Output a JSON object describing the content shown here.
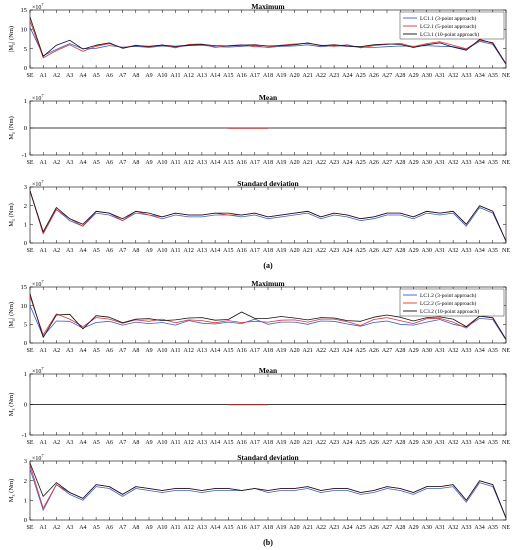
{
  "colors": {
    "lc1": "#3b5bdb",
    "lc2": "#e03131",
    "lc3": "#111111",
    "zero": "#c92a2a"
  },
  "category_labels": [
    "SE",
    "A1",
    "A2",
    "A3",
    "A4",
    "A5",
    "A6",
    "A7",
    "A8",
    "A9",
    "A10",
    "A11",
    "A12",
    "A13",
    "A14",
    "A15",
    "A16",
    "A17",
    "A18",
    "A19",
    "A20",
    "A21",
    "A22",
    "A23",
    "A24",
    "A25",
    "A26",
    "A27",
    "A28",
    "A29",
    "A30",
    "A31",
    "A32",
    "A33",
    "A34",
    "A35",
    "NE"
  ],
  "captions": [
    "(a)",
    "(b)"
  ],
  "chart_data": [
    {
      "type": "line",
      "panel": "a-max",
      "title": "Maximum",
      "ylabel": "|M_z| (Nm)",
      "exponent": "×10^7",
      "ylim": [
        0,
        15
      ],
      "yticks": [
        0,
        5,
        10,
        15
      ],
      "legend": "top-right",
      "series": [
        {
          "name": "LC1.1 (3-point approach)",
          "values": [
            10.5,
            3.2,
            4.8,
            6.3,
            5.0,
            5.1,
            5.8,
            5.4,
            5.6,
            5.3,
            5.7,
            5.4,
            5.8,
            5.9,
            5.5,
            5.4,
            5.6,
            5.8,
            5.3,
            5.6,
            5.7,
            6.0,
            5.5,
            5.8,
            5.6,
            5.4,
            5.3,
            5.5,
            5.7,
            5.6,
            5.8,
            5.6,
            5.5,
            4.8,
            6.9,
            6.1,
            0.9
          ]
        },
        {
          "name": "LC2.1 (5-point approach)",
          "values": [
            12.2,
            2.6,
            4.5,
            6.0,
            4.3,
            5.6,
            6.3,
            5.2,
            5.9,
            5.4,
            6.0,
            5.2,
            6.1,
            6.2,
            5.3,
            5.8,
            6.0,
            5.5,
            5.4,
            5.9,
            6.2,
            6.4,
            5.9,
            5.6,
            6.0,
            5.2,
            5.8,
            6.1,
            6.4,
            5.5,
            6.3,
            6.8,
            5.9,
            5.0,
            7.1,
            6.6,
            1.0
          ]
        },
        {
          "name": "LC3.1 (10-point approach)",
          "values": [
            13.2,
            3.0,
            5.9,
            7.2,
            4.9,
            5.9,
            6.5,
            5.1,
            5.8,
            5.6,
            5.9,
            5.6,
            5.9,
            6.1,
            5.8,
            5.7,
            5.9,
            6.0,
            5.7,
            5.8,
            6.0,
            6.5,
            5.8,
            6.0,
            5.7,
            5.5,
            6.0,
            6.2,
            6.1,
            5.3,
            6.0,
            6.5,
            5.4,
            4.6,
            7.4,
            6.4,
            1.1
          ]
        }
      ]
    },
    {
      "type": "line",
      "panel": "a-mean",
      "title": "Mean",
      "ylabel": "M_z (Nm)",
      "exponent": "×10^7",
      "ylim": [
        -1,
        1
      ],
      "yticks": [
        -1,
        0,
        1
      ],
      "series_values": "all zero"
    },
    {
      "type": "line",
      "panel": "a-std",
      "title": "Standard deviation",
      "ylabel": "M_z (Nm)",
      "exponent": "×10^7",
      "ylim": [
        0,
        3
      ],
      "yticks": [
        0,
        1,
        2,
        3
      ],
      "series": [
        {
          "name": "LC1.1 (3-point approach)",
          "values": [
            2.8,
            0.5,
            1.8,
            1.2,
            0.9,
            1.6,
            1.5,
            1.2,
            1.6,
            1.5,
            1.3,
            1.5,
            1.4,
            1.4,
            1.5,
            1.5,
            1.4,
            1.5,
            1.3,
            1.4,
            1.5,
            1.6,
            1.3,
            1.5,
            1.4,
            1.2,
            1.3,
            1.5,
            1.5,
            1.3,
            1.6,
            1.5,
            1.6,
            0.9,
            1.9,
            1.6,
            0.1
          ]
        },
        {
          "name": "LC2.1 (5-point approach)",
          "values": [
            2.8,
            0.5,
            1.8,
            1.3,
            0.9,
            1.7,
            1.6,
            1.2,
            1.7,
            1.5,
            1.4,
            1.6,
            1.5,
            1.5,
            1.6,
            1.5,
            1.5,
            1.6,
            1.4,
            1.5,
            1.6,
            1.7,
            1.4,
            1.6,
            1.5,
            1.3,
            1.4,
            1.6,
            1.6,
            1.4,
            1.7,
            1.6,
            1.7,
            1.0,
            2.0,
            1.7,
            0.1
          ]
        },
        {
          "name": "LC3.1 (10-point approach)",
          "values": [
            2.8,
            0.6,
            1.9,
            1.3,
            1.0,
            1.7,
            1.6,
            1.3,
            1.7,
            1.6,
            1.4,
            1.6,
            1.5,
            1.5,
            1.6,
            1.6,
            1.5,
            1.6,
            1.4,
            1.5,
            1.6,
            1.7,
            1.4,
            1.6,
            1.5,
            1.3,
            1.4,
            1.6,
            1.6,
            1.4,
            1.7,
            1.6,
            1.7,
            1.0,
            2.0,
            1.7,
            0.1
          ]
        }
      ]
    },
    {
      "type": "line",
      "panel": "b-max",
      "title": "Maximum",
      "ylabel": "|M_z| (Nm)",
      "exponent": "×10^7",
      "ylim": [
        0,
        15
      ],
      "yticks": [
        0,
        5,
        10,
        15
      ],
      "legend": "top-right",
      "series": [
        {
          "name": "LC1.2 (3-point approach)",
          "values": [
            10.0,
            1.8,
            5.9,
            5.8,
            4.0,
            5.5,
            5.8,
            4.8,
            5.6,
            5.2,
            5.5,
            4.8,
            6.0,
            5.3,
            5.1,
            5.6,
            5.2,
            6.4,
            5.0,
            5.6,
            5.6,
            5.0,
            5.9,
            5.8,
            5.1,
            4.5,
            5.5,
            5.9,
            5.0,
            4.8,
            5.6,
            6.3,
            5.0,
            4.3,
            6.6,
            6.3,
            0.8
          ]
        },
        {
          "name": "LC2.2 (5-point approach)",
          "values": [
            12.5,
            2.2,
            7.8,
            6.4,
            4.4,
            6.8,
            6.4,
            5.3,
            6.2,
            5.8,
            6.4,
            5.4,
            6.2,
            6.0,
            5.4,
            6.0,
            5.5,
            5.8,
            5.6,
            6.1,
            6.2,
            5.6,
            6.4,
            6.4,
            5.7,
            4.7,
            6.3,
            6.8,
            6.0,
            5.2,
            6.5,
            6.6,
            5.6,
            4.0,
            7.2,
            6.7,
            0.9
          ]
        },
        {
          "name": "LC3.2 (10-point approach)",
          "values": [
            13.2,
            1.5,
            7.5,
            7.7,
            3.8,
            7.3,
            6.9,
            5.4,
            6.4,
            6.5,
            6.0,
            6.2,
            6.7,
            6.8,
            6.1,
            6.3,
            8.3,
            6.6,
            6.6,
            7.1,
            6.7,
            6.2,
            6.8,
            6.7,
            6.0,
            5.8,
            6.9,
            7.5,
            6.9,
            5.9,
            6.8,
            7.0,
            6.4,
            4.4,
            7.2,
            6.8,
            1.0
          ]
        }
      ]
    },
    {
      "type": "line",
      "panel": "b-mean",
      "title": "Mean",
      "ylabel": "M_z (Nm)",
      "exponent": "×10^7",
      "ylim": [
        -1,
        1
      ],
      "yticks": [
        -1,
        0,
        1
      ],
      "series_values": "all zero"
    },
    {
      "type": "line",
      "panel": "b-std",
      "title": "Standard deviation",
      "ylabel": "M_z (Nm)",
      "exponent": "×10^7",
      "ylim": [
        0,
        3
      ],
      "yticks": [
        0,
        1,
        2,
        3
      ],
      "series": [
        {
          "name": "LC1.2 (3-point approach)",
          "values": [
            2.6,
            0.5,
            1.8,
            1.3,
            1.0,
            1.7,
            1.6,
            1.2,
            1.6,
            1.5,
            1.4,
            1.5,
            1.5,
            1.4,
            1.5,
            1.5,
            1.5,
            1.6,
            1.4,
            1.5,
            1.5,
            1.6,
            1.4,
            1.5,
            1.5,
            1.3,
            1.4,
            1.6,
            1.5,
            1.3,
            1.6,
            1.6,
            1.7,
            0.9,
            1.9,
            1.7,
            0.1
          ]
        },
        {
          "name": "LC2.2 (5-point approach)",
          "values": [
            2.8,
            0.6,
            1.8,
            1.4,
            1.1,
            1.8,
            1.7,
            1.3,
            1.7,
            1.6,
            1.5,
            1.6,
            1.6,
            1.5,
            1.6,
            1.6,
            1.5,
            1.6,
            1.5,
            1.6,
            1.6,
            1.7,
            1.5,
            1.6,
            1.6,
            1.4,
            1.5,
            1.7,
            1.6,
            1.4,
            1.7,
            1.7,
            1.8,
            1.0,
            2.0,
            1.8,
            0.1
          ]
        },
        {
          "name": "LC3.2 (10-point approach)",
          "values": [
            2.9,
            1.2,
            1.9,
            1.4,
            1.1,
            1.8,
            1.7,
            1.3,
            1.7,
            1.6,
            1.5,
            1.6,
            1.6,
            1.5,
            1.6,
            1.6,
            1.5,
            1.6,
            1.5,
            1.6,
            1.6,
            1.7,
            1.5,
            1.6,
            1.6,
            1.4,
            1.5,
            1.7,
            1.6,
            1.4,
            1.7,
            1.7,
            1.8,
            1.0,
            2.0,
            1.8,
            0.1
          ]
        }
      ]
    }
  ]
}
